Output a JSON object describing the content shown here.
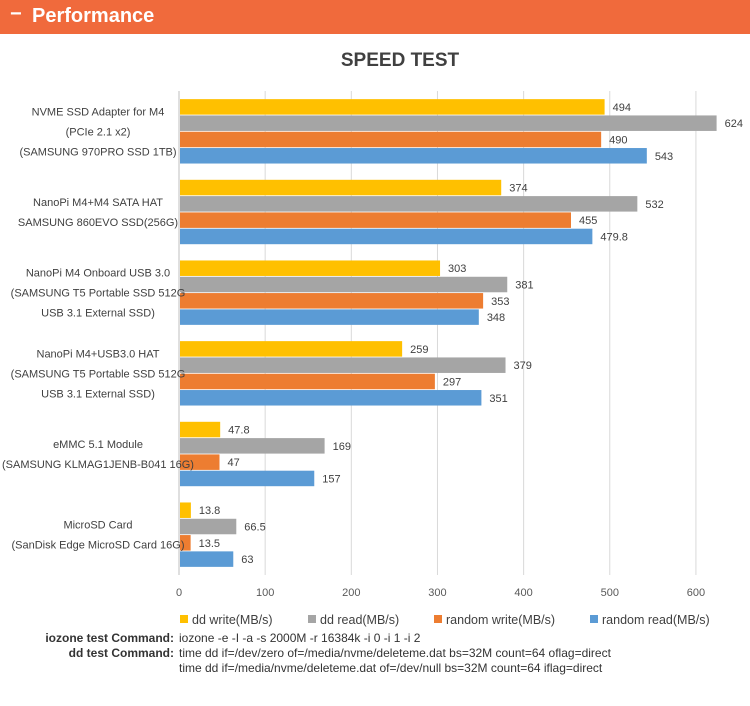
{
  "header": {
    "icon": "minus-icon",
    "title": "Performance",
    "color": "#f06a3c"
  },
  "chart_data": {
    "type": "bar",
    "orientation": "horizontal",
    "title": "SPEED TEST",
    "categories": [
      [
        "NVME SSD Adapter for M4",
        "(PCIe 2.1 x2)",
        "(SAMSUNG 970PRO SSD 1TB)"
      ],
      [
        "NanoPi M4+M4 SATA HAT",
        "SAMSUNG 860EVO SSD(256G)"
      ],
      [
        "NanoPi M4 Onboard USB 3.0",
        "(SAMSUNG T5 Portable SSD 512G",
        "USB 3.1 External SSD)"
      ],
      [
        "NanoPi M4+USB3.0 HAT",
        "(SAMSUNG T5 Portable SSD 512G",
        "USB 3.1 External SSD)"
      ],
      [
        "eMMC 5.1 Module",
        "(SAMSUNG KLMAG1JENB-B041 16G)"
      ],
      [
        "MicroSD Card",
        "(SanDisk Edge MicroSD Card 16G)"
      ]
    ],
    "series": [
      {
        "name": "dd write(MB/s)",
        "color": "#ffc000",
        "values": [
          494,
          374,
          303,
          259,
          47.8,
          13.8
        ],
        "labels": [
          "494",
          "374",
          "303",
          "259",
          "47.8",
          "13.8"
        ]
      },
      {
        "name": "dd read(MB/s)",
        "color": "#a5a5a5",
        "values": [
          624,
          532,
          381,
          379,
          169,
          66.5
        ],
        "labels": [
          "624",
          "532",
          "381",
          "379",
          "169",
          "66.5"
        ]
      },
      {
        "name": "random write(MB/s)",
        "color": "#ed7d31",
        "values": [
          490,
          455,
          353,
          297,
          47,
          13.5
        ],
        "labels": [
          "490",
          "455",
          "353",
          "297",
          "47",
          "13.5"
        ]
      },
      {
        "name": "random read(MB/s)",
        "color": "#5b9bd5",
        "values": [
          543,
          479.8,
          348,
          351,
          157,
          63
        ],
        "labels": [
          "543",
          "479.8",
          "348",
          "351",
          "157",
          "63"
        ]
      }
    ],
    "xlim": [
      0,
      650
    ],
    "xticks": [
      "0",
      "100",
      "200",
      "300",
      "400",
      "500",
      "600"
    ],
    "grid": true,
    "legend": "bottom"
  },
  "commands": {
    "iozone_label": "iozone test Command:",
    "iozone": "iozone -e -I -a -s 2000M -r 16384k -i 0 -i 1 -i 2",
    "dd_label": "dd test Command:",
    "dd_write": "time dd if=/dev/zero of=/media/nvme/deleteme.dat bs=32M count=64 oflag=direct",
    "dd_read": "time dd if=/media/nvme/deleteme.dat of=/dev/null bs=32M count=64 iflag=direct"
  }
}
